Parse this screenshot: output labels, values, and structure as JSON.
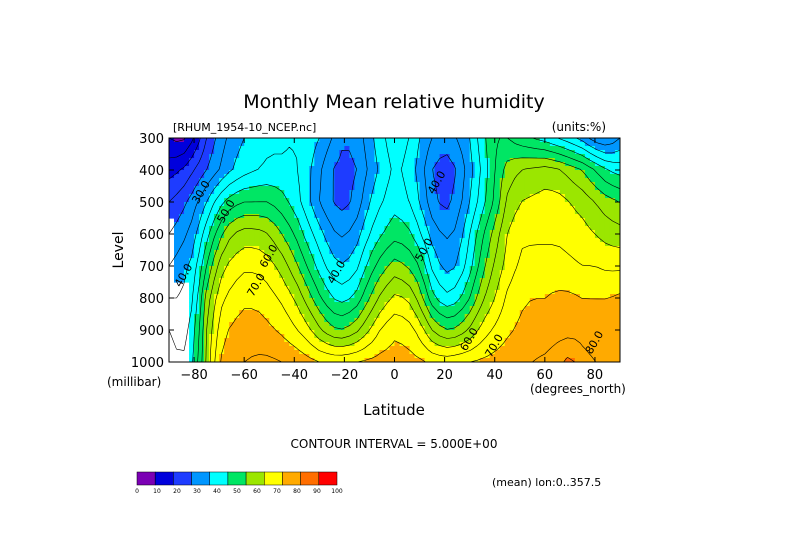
{
  "chart_data": {
    "type": "heatmap",
    "title": "Monthly Mean relative humidity",
    "source_label": "[RHUM_1954-10_NCEP.nc]",
    "units_label": "(units:%)",
    "xlabel": "Latitude",
    "x_unit_label": "(degrees_north)",
    "ylabel": "Level",
    "y_unit_label": "(millibar)",
    "x_ticks": [
      -80,
      -60,
      -40,
      -20,
      0,
      20,
      40,
      60,
      80
    ],
    "y_ticks": [
      300,
      400,
      500,
      600,
      700,
      800,
      900,
      1000
    ],
    "xlim": [
      -90,
      90
    ],
    "ylim": [
      1000,
      300
    ],
    "y_inverted": true,
    "contour_interval_label": "CONTOUR INTERVAL = 5.000E+00",
    "footnote": "(mean) lon:0..357.5",
    "colorbar": {
      "ticks": [
        0,
        10,
        20,
        30,
        40,
        50,
        60,
        70,
        80,
        90,
        100
      ],
      "colors": [
        "#7b00b4",
        "#0000dc",
        "#1e3cff",
        "#0096ff",
        "#00ffff",
        "#00e664",
        "#9be600",
        "#ffff00",
        "#ffaa00",
        "#ff6e00",
        "#ff0000"
      ]
    },
    "contour_labels": [
      {
        "text": "30.0",
        "lat": -77,
        "level": 470
      },
      {
        "text": "50.0",
        "lat": -67,
        "level": 530
      },
      {
        "text": "40.0",
        "lat": -84,
        "level": 730
      },
      {
        "text": "60.0",
        "lat": -50,
        "level": 670
      },
      {
        "text": "70.0",
        "lat": -55,
        "level": 760
      },
      {
        "text": "40.0",
        "lat": -23,
        "level": 720
      },
      {
        "text": "40.0",
        "lat": 17,
        "level": 440
      },
      {
        "text": "50.0",
        "lat": 12,
        "level": 650
      },
      {
        "text": "60.0",
        "lat": 30,
        "level": 930
      },
      {
        "text": "70.0",
        "lat": 40,
        "level": 950
      },
      {
        "text": "80.0",
        "lat": 80,
        "level": 940
      }
    ],
    "field": {
      "lat": [
        -90,
        -85,
        -80,
        -75,
        -70,
        -65,
        -60,
        -55,
        -50,
        -45,
        -40,
        -35,
        -30,
        -25,
        -20,
        -15,
        -10,
        -5,
        0,
        5,
        10,
        15,
        20,
        25,
        30,
        35,
        40,
        45,
        50,
        55,
        60,
        65,
        70,
        75,
        80,
        85,
        90
      ],
      "levels": [
        300,
        400,
        500,
        600,
        700,
        800,
        900,
        1000
      ],
      "missing": [
        {
          "lat": -90,
          "level": 600
        },
        {
          "lat": -90,
          "level": 700
        },
        {
          "lat": -90,
          "level": 800
        },
        {
          "lat": -90,
          "level": 900
        },
        {
          "lat": -90,
          "level": 1000
        },
        {
          "lat": -85,
          "level": 800
        },
        {
          "lat": -85,
          "level": 900
        },
        {
          "lat": -85,
          "level": 1000
        }
      ],
      "values": [
        [
          10,
          8,
          15,
          25,
          32,
          37,
          40,
          42,
          44,
          44,
          45,
          43,
          40,
          35,
          30,
          32,
          38,
          44,
          48,
          46,
          40,
          35,
          32,
          35,
          40,
          48,
          55,
          55,
          52,
          50,
          48,
          45,
          42,
          38,
          32,
          30,
          35
        ],
        [
          18,
          20,
          25,
          30,
          35,
          40,
          43,
          45,
          46,
          46,
          46,
          42,
          36,
          30,
          28,
          30,
          36,
          42,
          46,
          44,
          38,
          30,
          27,
          30,
          38,
          46,
          55,
          62,
          65,
          66,
          67,
          66,
          63,
          60,
          55,
          50,
          48
        ],
        [
          25,
          28,
          33,
          40,
          48,
          53,
          55,
          55,
          55,
          52,
          48,
          42,
          35,
          30,
          28,
          32,
          40,
          45,
          48,
          46,
          40,
          32,
          28,
          32,
          40,
          48,
          56,
          66,
          70,
          71,
          72,
          72,
          70,
          68,
          65,
          62,
          60
        ],
        [
          30,
          33,
          38,
          48,
          58,
          65,
          67,
          67,
          65,
          60,
          55,
          48,
          42,
          36,
          34,
          38,
          45,
          50,
          53,
          52,
          46,
          38,
          34,
          36,
          45,
          54,
          62,
          70,
          74,
          74,
          74,
          74,
          73,
          72,
          70,
          68,
          67
        ],
        [
          35,
          38,
          42,
          55,
          67,
          72,
          74,
          74,
          72,
          68,
          62,
          55,
          48,
          42,
          40,
          44,
          52,
          58,
          62,
          60,
          55,
          44,
          38,
          40,
          48,
          58,
          66,
          72,
          76,
          77,
          77,
          77,
          76,
          75,
          75,
          74,
          74
        ],
        [
          40,
          40,
          45,
          62,
          73,
          77,
          79,
          79,
          77,
          74,
          70,
          63,
          56,
          50,
          48,
          52,
          60,
          67,
          71,
          70,
          63,
          52,
          46,
          48,
          55,
          64,
          70,
          76,
          79,
          80,
          80,
          81,
          81,
          80,
          80,
          80,
          81
        ],
        [
          45,
          42,
          48,
          65,
          77,
          81,
          82,
          82,
          81,
          79,
          76,
          72,
          66,
          61,
          60,
          64,
          70,
          76,
          79,
          78,
          73,
          65,
          60,
          61,
          66,
          72,
          76,
          79,
          81,
          82,
          82,
          83,
          83,
          83,
          82,
          82,
          83
        ],
        [
          48,
          45,
          50,
          66,
          80,
          84,
          85,
          86,
          86,
          85,
          84,
          82,
          80,
          79,
          79,
          80,
          81,
          82,
          82,
          82,
          81,
          79,
          78,
          79,
          80,
          81,
          82,
          83,
          84,
          85,
          86,
          88,
          92,
          87,
          85,
          84,
          85
        ]
      ]
    }
  }
}
